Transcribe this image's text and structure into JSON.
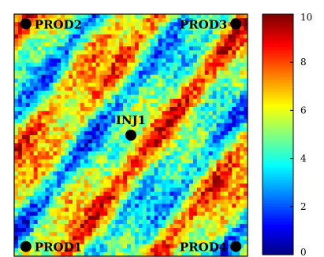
{
  "chart_data": {
    "type": "heatmap",
    "field": "permeability field (heterogeneous, diagonal streaks)",
    "colormap": "jet",
    "colorbar": {
      "range": [
        0,
        10
      ],
      "ticks": [
        "0",
        "2",
        "4",
        "6",
        "8",
        "10"
      ]
    },
    "grid_resolution": [
      60,
      60
    ],
    "wells": [
      {
        "name": "PROD2",
        "x": 0.05,
        "y": 0.96
      },
      {
        "name": "PROD3",
        "x": 0.95,
        "y": 0.96
      },
      {
        "name": "INJ1",
        "x": 0.5,
        "y": 0.5
      },
      {
        "name": "PROD1",
        "x": 0.05,
        "y": 0.04
      },
      {
        "name": "PROD4",
        "x": 0.95,
        "y": 0.04
      }
    ],
    "xlim": [
      0,
      1
    ],
    "ylim": [
      0,
      1
    ]
  }
}
